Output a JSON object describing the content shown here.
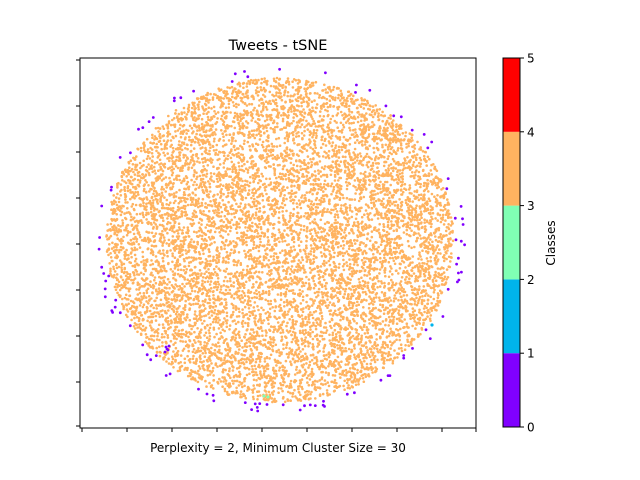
{
  "chart_data": {
    "type": "scatter",
    "title": "Tweets - tSNE",
    "xlabel": "Perplexity = 2, Minimum Cluster Size = 30",
    "ylabel": "",
    "x_tick_labels_shown": false,
    "y_tick_labels_shown": false,
    "point_counts": {
      "class_3_dense_disc": 9000,
      "class_0_rim": 95,
      "class_1": 1,
      "class_2": 2
    },
    "series": [
      {
        "class": 0,
        "color": "#8000ff",
        "description": "sparse points along outer rim of disc"
      },
      {
        "class": 1,
        "color": "#00b4eb",
        "description": "single point near right edge"
      },
      {
        "class": 2,
        "color": "#80ffb4",
        "description": "few points near bottom center"
      },
      {
        "class": 3,
        "color": "#ffb360",
        "description": "dense uniform disc (majority)"
      }
    ],
    "colorbar": {
      "label": "Classes",
      "ticks": [
        "0",
        "1",
        "2",
        "3",
        "4",
        "5"
      ],
      "bands": [
        {
          "from": 0,
          "to": 1,
          "color": "#8000ff"
        },
        {
          "from": 1,
          "to": 2,
          "color": "#00b4eb"
        },
        {
          "from": 2,
          "to": 3,
          "color": "#80ffb4"
        },
        {
          "from": 3,
          "to": 4,
          "color": "#ffb360"
        },
        {
          "from": 4,
          "to": 5,
          "color": "#ff0000"
        }
      ]
    }
  }
}
